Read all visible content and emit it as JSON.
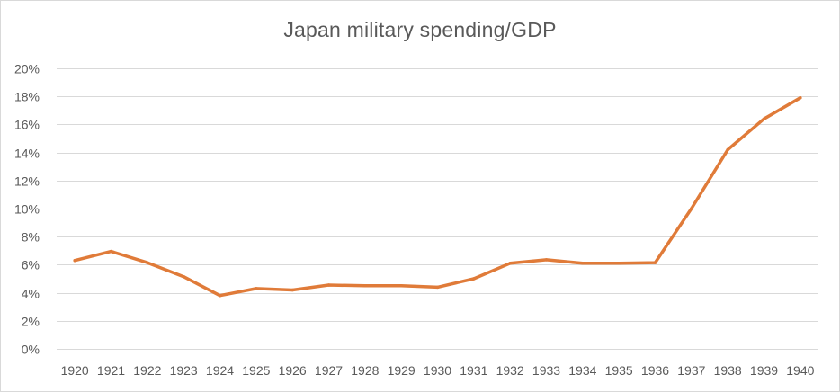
{
  "chart_data": {
    "type": "line",
    "title": "Japan military spending/GDP",
    "xlabel": "",
    "ylabel": "",
    "categories": [
      "1920",
      "1921",
      "1922",
      "1923",
      "1924",
      "1925",
      "1926",
      "1927",
      "1928",
      "1929",
      "1930",
      "1931",
      "1932",
      "1933",
      "1934",
      "1935",
      "1936",
      "1937",
      "1938",
      "1939",
      "1940"
    ],
    "series": [
      {
        "values": [
          6.3,
          6.95,
          6.15,
          5.15,
          3.8,
          4.3,
          4.2,
          4.55,
          4.5,
          4.5,
          4.4,
          5.0,
          6.1,
          6.35,
          6.1,
          6.1,
          6.15,
          10.0,
          14.2,
          16.4,
          17.9
        ],
        "color": "#e07b39"
      }
    ],
    "ylim": [
      0,
      20
    ],
    "y_ticks": [
      0,
      2,
      4,
      6,
      8,
      10,
      12,
      14,
      16,
      18,
      20
    ],
    "y_tick_labels": [
      "0%",
      "2%",
      "4%",
      "6%",
      "8%",
      "10%",
      "12%",
      "14%",
      "16%",
      "18%",
      "20%"
    ],
    "grid": true,
    "legend": "none"
  }
}
